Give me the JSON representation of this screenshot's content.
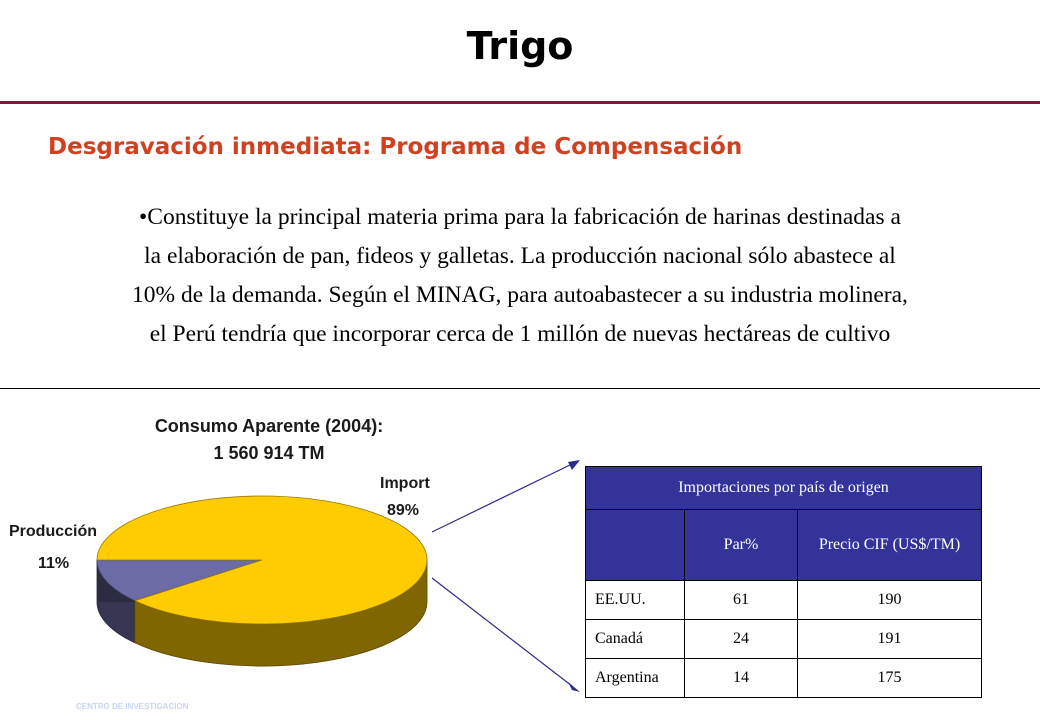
{
  "page": {
    "title": "Trigo",
    "subtitle": "Desgravación inmediata: Programa de Compensación",
    "paragraph_lines": [
      "•Constituye la principal materia prima para la fabricación de harinas destinadas a",
      "la elaboración de pan, fideos y galletas. La producción nacional sólo abastece al",
      "10% de la demanda. Según el MINAG, para autoabastecer a su industria molinera,",
      "el Perú tendría que incorporar cerca de 1 millón de nuevas hectáreas de cultivo"
    ],
    "watermark": "CENTRO DE INVESTIGACION"
  },
  "chart_data": [
    {
      "type": "pie",
      "title": "Consumo Aparente (2004):",
      "subtitle": "1 560 914 TM",
      "slices": [
        {
          "label": "Import",
          "value": 89,
          "value_label": "89%",
          "color": "#ffcc00"
        },
        {
          "label": "Producción",
          "value": 11,
          "value_label": "11%",
          "color": "#6b6ba6"
        }
      ]
    },
    {
      "type": "table",
      "title": "Importaciones por país de origen",
      "columns": [
        "",
        "Par%",
        "Precio CIF (US$/TM)"
      ],
      "rows": [
        {
          "country": "EE.UU.",
          "share": "61",
          "price": "190"
        },
        {
          "country": "Canadá",
          "share": "24",
          "price": "191"
        },
        {
          "country": "Argentina",
          "share": "14",
          "price": "175"
        }
      ]
    }
  ]
}
